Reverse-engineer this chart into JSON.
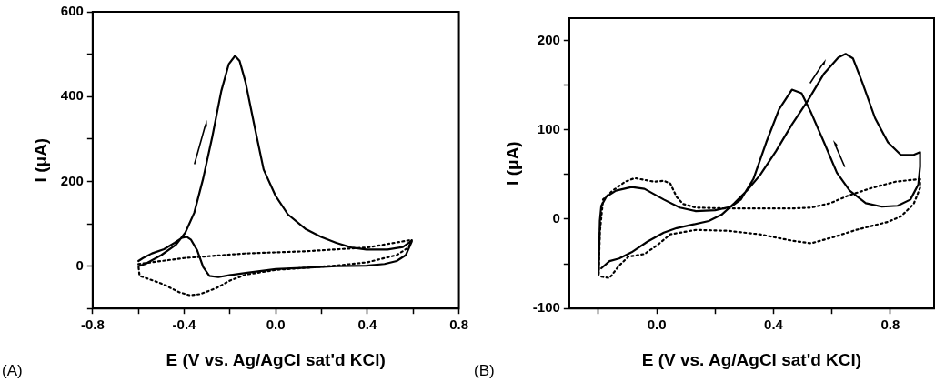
{
  "chart_data": [
    {
      "type": "line",
      "xlabel": "E (V vs. Ag/AgCl sat'd KCl)",
      "ylabel": "I (μA)",
      "annotations": [
        "(A)"
      ],
      "xlim": [
        -0.8,
        0.8
      ],
      "ylim": [
        -100,
        600
      ],
      "xticks": [
        -0.8,
        {
          "value": -0.6,
          "label": null
        },
        -0.4,
        {
          "value": -0.2,
          "label": null
        },
        {
          "value": 0,
          "label": "0.0"
        },
        {
          "value": 0.2,
          "label": null
        },
        0.4,
        {
          "value": 0.6,
          "label": null
        },
        0.8
      ],
      "yticks": [
        {
          "value": -100,
          "label": null
        },
        0,
        {
          "value": 100,
          "label": null
        },
        200,
        {
          "value": 300,
          "label": null
        },
        400,
        {
          "value": 500,
          "label": null
        },
        600
      ],
      "grid": false,
      "legend": false,
      "marker": "none",
      "series": [
        {
          "color": "#000000",
          "line_style": "solid",
          "x": [
            -0.6,
            -0.57,
            -0.5,
            -0.435,
            -0.395,
            -0.356,
            -0.317,
            -0.277,
            -0.238,
            -0.205,
            -0.178,
            -0.158,
            -0.132,
            -0.092,
            -0.053,
            0,
            0.053,
            0.132,
            0.198,
            0.264,
            0.33,
            0.396,
            0.488,
            0.555,
            0.594,
            0.594,
            0.568,
            0.528,
            0.475,
            0.396,
            0.264,
            0.132,
            0,
            -0.132,
            -0.198,
            -0.251,
            -0.29,
            -0.317,
            -0.343,
            -0.37,
            -0.389,
            -0.409,
            -0.442,
            -0.488,
            -0.541,
            -0.58,
            -0.6
          ],
          "values": [
            0,
            5,
            26,
            51,
            79,
            126,
            207,
            306,
            413,
            477,
            496,
            484,
            434,
            328,
            228,
            165,
            122,
            87,
            69,
            55,
            44,
            39,
            39,
            45,
            60,
            58,
            26,
            12,
            5,
            1,
            0,
            -4,
            -7,
            -16,
            -21,
            -26,
            -23,
            -2,
            37,
            62,
            69,
            67,
            55,
            40,
            30,
            19,
            12
          ]
        },
        {
          "color": "#000000",
          "line_style": "dotted",
          "x": [
            -0.6,
            -0.4,
            -0.13,
            0.13,
            0.4,
            0.594,
            0.58,
            0.528,
            0.4,
            0.26,
            0.13,
            0,
            -0.13,
            -0.2,
            -0.26,
            -0.33,
            -0.375,
            -0.42,
            -0.5,
            -0.595,
            -0.6
          ],
          "values": [
            5,
            19,
            30,
            35,
            44,
            62,
            44,
            26,
            9,
            1,
            -4,
            -9,
            -20,
            -34,
            -52,
            -66,
            -69,
            -62,
            -41,
            -23,
            1
          ]
        }
      ]
    },
    {
      "type": "line",
      "xlabel": "E (V vs. Ag/AgCl sat'd KCl)",
      "ylabel": "I (μA)",
      "annotations": [
        "(B)"
      ],
      "xlim": [
        -0.3,
        0.95
      ],
      "ylim": [
        -100,
        225
      ],
      "xticks": [
        {
          "value": -0.2,
          "label": null
        },
        {
          "value": 0,
          "label": "0.0"
        },
        {
          "value": 0.2,
          "label": null
        },
        0.4,
        {
          "value": 0.6,
          "label": null
        },
        0.8
      ],
      "yticks": [
        -100,
        {
          "value": -50,
          "label": null
        },
        0,
        {
          "value": 50,
          "label": null
        },
        100,
        {
          "value": 150,
          "label": null
        },
        200
      ],
      "grid": false,
      "legend": false,
      "marker": "none",
      "series": [
        {
          "color": "#000000",
          "line_style": "solid",
          "x": [
            -0.199,
            -0.195,
            -0.19,
            -0.173,
            -0.14,
            -0.086,
            -0.042,
            0.024,
            0.079,
            0.134,
            0.2,
            0.255,
            0.288,
            0.331,
            0.375,
            0.419,
            0.463,
            0.496,
            0.529,
            0.573,
            0.617,
            0.661,
            0.716,
            0.771,
            0.825,
            0.869,
            0.896,
            0.902,
            0.902,
            0.88,
            0.836,
            0.792,
            0.748,
            0.704,
            0.672,
            0.647,
            0.622,
            0.573,
            0.518,
            0.463,
            0.408,
            0.353,
            0.309,
            0.266,
            0.222,
            0.178,
            0.123,
            0.068,
            0.024,
            -0.031,
            -0.086,
            -0.129,
            -0.162,
            -0.19
          ],
          "values": [
            -60,
            -2,
            15,
            25,
            32,
            36,
            34,
            22,
            13,
            9,
            10,
            14,
            22,
            45,
            86,
            123,
            145,
            141,
            119,
            86,
            52,
            32,
            18,
            14,
            15,
            22,
            39,
            59,
            75,
            72,
            72,
            86,
            113,
            153,
            180,
            185,
            181,
            163,
            133,
            106,
            76,
            49,
            32,
            18,
            5,
            -2,
            -6,
            -10,
            -15,
            -25,
            -37,
            -44,
            -47,
            -55
          ]
        },
        {
          "color": "#000000",
          "line_style": "dotted",
          "x": [
            -0.199,
            -0.195,
            -0.184,
            -0.151,
            -0.108,
            -0.075,
            -0.042,
            -0.009,
            0.024,
            0.046,
            0.068,
            0.09,
            0.134,
            0.244,
            0.353,
            0.463,
            0.529,
            0.595,
            0.661,
            0.737,
            0.818,
            0.902,
            0.902,
            0.88,
            0.836,
            0.792,
            0.683,
            0.606,
            0.529,
            0.463,
            0.353,
            0.244,
            0.134,
            0.046,
            0.002,
            -0.042,
            -0.097,
            -0.129,
            -0.162,
            -0.195
          ],
          "values": [
            -62,
            -15,
            22,
            32,
            42,
            46,
            44,
            42,
            43,
            40,
            25,
            17,
            13,
            12,
            12,
            12,
            13,
            18,
            27,
            35,
            42,
            45,
            35,
            17,
            3,
            -3,
            -12,
            -20,
            -27,
            -24,
            -17,
            -13,
            -12,
            -17,
            -29,
            -39,
            -42,
            -52,
            -66,
            -64
          ]
        }
      ]
    }
  ]
}
